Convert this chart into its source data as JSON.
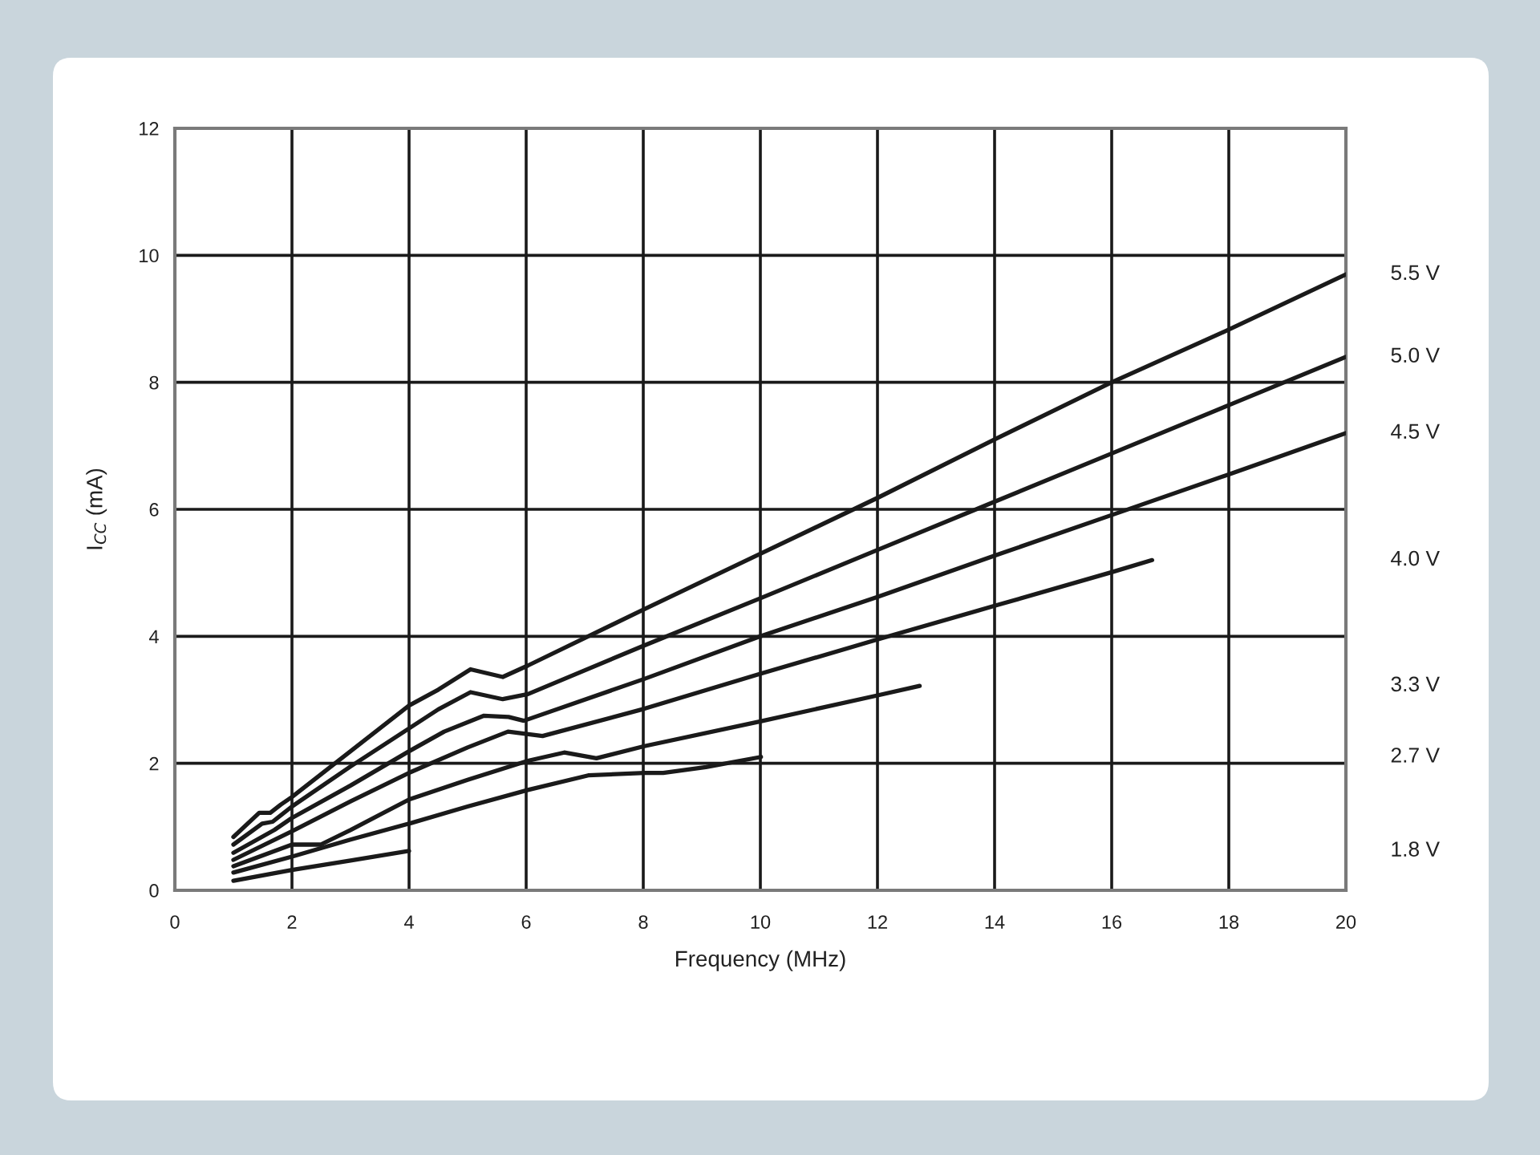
{
  "chart_data": {
    "type": "line",
    "xlabel": "Frequency (MHz)",
    "ylabel": "I$_{CC}$ (mA)",
    "xlim": [
      0,
      20
    ],
    "ylim": [
      0,
      12
    ],
    "xticks": [
      0,
      2,
      4,
      6,
      8,
      10,
      12,
      14,
      16,
      18,
      20
    ],
    "yticks": [
      0,
      2,
      4,
      6,
      8,
      10,
      12
    ],
    "grid": true,
    "series": [
      {
        "name": "5.5 V",
        "color": "#1a1a1a",
        "x": [
          1,
          1.44,
          1.63,
          1.81,
          2,
          3,
          4,
          4.5,
          5.05,
          5.6,
          6.03,
          8,
          10,
          12,
          14,
          16,
          18,
          20
        ],
        "values": [
          0.84,
          1.22,
          1.22,
          1.35,
          1.47,
          2.19,
          2.91,
          3.16,
          3.48,
          3.36,
          3.54,
          4.42,
          5.3,
          6.18,
          7.1,
          8.0,
          8.83,
          9.7
        ]
      },
      {
        "name": "5.0 V",
        "color": "#1a1a1a",
        "x": [
          1,
          1.49,
          1.67,
          2,
          3,
          4,
          4.5,
          5.05,
          5.6,
          6.03,
          8,
          10,
          12,
          14,
          16,
          18,
          20
        ],
        "values": [
          0.72,
          1.05,
          1.08,
          1.32,
          1.95,
          2.55,
          2.85,
          3.12,
          3.01,
          3.09,
          3.85,
          4.6,
          5.36,
          6.12,
          6.88,
          7.64,
          8.4
        ]
      },
      {
        "name": "4.5 V",
        "color": "#1a1a1a",
        "x": [
          1,
          1.7,
          2,
          3,
          4,
          4.6,
          5.28,
          5.7,
          5.96,
          8.02,
          10,
          12,
          14,
          16,
          18,
          20
        ],
        "values": [
          0.59,
          0.95,
          1.14,
          1.65,
          2.19,
          2.5,
          2.75,
          2.73,
          2.67,
          3.33,
          4.0,
          4.62,
          5.27,
          5.91,
          6.55,
          7.2
        ]
      },
      {
        "name": "4.0 V",
        "color": "#1a1a1a",
        "x": [
          1,
          2,
          3,
          4,
          5,
          5.69,
          6.28,
          8.02,
          10,
          12,
          14,
          16,
          16.69
        ],
        "values": [
          0.48,
          0.93,
          1.4,
          1.85,
          2.25,
          2.5,
          2.43,
          2.86,
          3.41,
          3.95,
          4.48,
          5.01,
          5.2
        ]
      },
      {
        "name": "3.3 V",
        "color": "#1a1a1a",
        "x": [
          1,
          2,
          2.49,
          3,
          4,
          5,
          6.03,
          6.65,
          7.2,
          8.02,
          10,
          12,
          12.72
        ],
        "values": [
          0.38,
          0.72,
          0.72,
          0.95,
          1.43,
          1.74,
          2.04,
          2.17,
          2.08,
          2.27,
          2.66,
          3.07,
          3.22
        ]
      },
      {
        "name": "2.7 V",
        "color": "#1a1a1a",
        "x": [
          1,
          2,
          3,
          4,
          5,
          6.03,
          7.06,
          8.02,
          8.34,
          9.07,
          10.01
        ],
        "values": [
          0.28,
          0.53,
          0.8,
          1.05,
          1.32,
          1.58,
          1.81,
          1.85,
          1.85,
          1.94,
          2.1
        ]
      },
      {
        "name": "1.8 V",
        "color": "#1a1a1a",
        "x": [
          1,
          2,
          3,
          4
        ],
        "values": [
          0.15,
          0.32,
          0.47,
          0.62
        ]
      }
    ]
  }
}
